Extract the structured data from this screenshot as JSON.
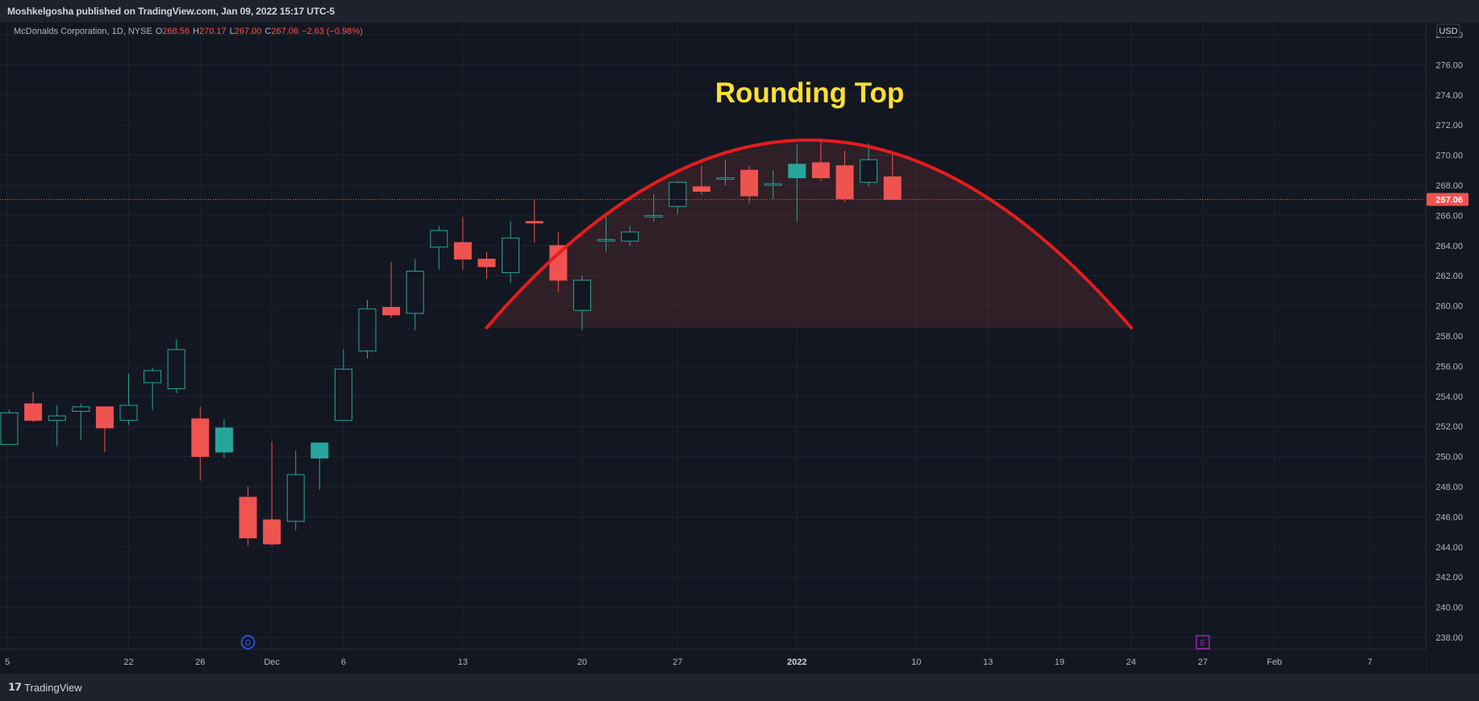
{
  "header": {
    "publisher_line": "Moshkelgosha published on TradingView.com, Jan 09, 2022 15:17 UTC-5"
  },
  "legend": {
    "symbol": "McDonalds Corporation, 1D, NYSE",
    "o_label": "O",
    "o_value": "268.56",
    "h_label": "H",
    "h_value": "270.17",
    "l_label": "L",
    "l_value": "267.00",
    "c_label": "C",
    "c_value": "267.06",
    "change": "−2.63 (−0.98%)"
  },
  "footer": {
    "brand": "TradingView"
  },
  "colors": {
    "background": "#131722",
    "grid": "#1f2330",
    "text": "#b2b5be",
    "up": "#26a69a",
    "down": "#ef5350",
    "arc": "#e51c1c",
    "title": "#ffe033",
    "dividend": "#2962ff",
    "earnings": "#9c27b0"
  },
  "chart_data": {
    "type": "candlestick",
    "title": "Rounding Top",
    "currency": "USD",
    "last_price": "267.06",
    "y_ticks": [
      "238.00",
      "240.00",
      "242.00",
      "244.00",
      "246.00",
      "248.00",
      "250.00",
      "252.00",
      "254.00",
      "256.00",
      "258.00",
      "260.00",
      "262.00",
      "264.00",
      "266.00",
      "268.00",
      "270.00",
      "272.00",
      "274.00",
      "276.00",
      "278.00"
    ],
    "ylim": [
      237.2,
      278.8
    ],
    "x_ticks": [
      {
        "label": "5",
        "slot": -0.08
      },
      {
        "label": "22",
        "slot": 5
      },
      {
        "label": "26",
        "slot": 8
      },
      {
        "label": "Dec",
        "slot": 11
      },
      {
        "label": "6",
        "slot": 14
      },
      {
        "label": "13",
        "slot": 19
      },
      {
        "label": "20",
        "slot": 24
      },
      {
        "label": "27",
        "slot": 28
      },
      {
        "label": "2022",
        "slot": 33
      },
      {
        "label": "10",
        "slot": 38
      },
      {
        "label": "13",
        "slot": 41
      },
      {
        "label": "19",
        "slot": 44
      },
      {
        "label": "24",
        "slot": 47
      },
      {
        "label": "27",
        "slot": 50
      },
      {
        "label": "Feb",
        "slot": 53
      },
      {
        "label": "7",
        "slot": 57
      }
    ],
    "candles": [
      {
        "o": 250.8,
        "h": 253.1,
        "l": 250.8,
        "c": 252.9
      },
      {
        "o": 253.5,
        "h": 254.3,
        "l": 252.3,
        "c": 252.4
      },
      {
        "o": 252.4,
        "h": 253.4,
        "l": 250.7,
        "c": 252.7
      },
      {
        "o": 253.0,
        "h": 253.5,
        "l": 251.1,
        "c": 253.3
      },
      {
        "o": 253.3,
        "h": 253.3,
        "l": 250.3,
        "c": 251.9
      },
      {
        "o": 252.4,
        "h": 255.5,
        "l": 252.1,
        "c": 253.4
      },
      {
        "o": 254.9,
        "h": 255.9,
        "l": 253.1,
        "c": 255.7
      },
      {
        "o": 254.5,
        "h": 257.8,
        "l": 254.2,
        "c": 257.1
      },
      {
        "o": 252.5,
        "h": 253.3,
        "l": 248.4,
        "c": 250.0
      },
      {
        "o": 250.3,
        "h": 252.5,
        "l": 249.9,
        "c": 251.9
      },
      {
        "o": 247.3,
        "h": 248.0,
        "l": 244.1,
        "c": 244.6
      },
      {
        "o": 245.8,
        "h": 251.0,
        "l": 244.1,
        "c": 244.2
      },
      {
        "o": 245.7,
        "h": 250.4,
        "l": 245.1,
        "c": 248.8
      },
      {
        "o": 249.9,
        "h": 250.8,
        "l": 247.8,
        "c": 250.9
      },
      {
        "o": 252.4,
        "h": 257.1,
        "l": 252.4,
        "c": 255.8
      },
      {
        "o": 257.0,
        "h": 260.4,
        "l": 256.5,
        "c": 259.8
      },
      {
        "o": 259.9,
        "h": 262.9,
        "l": 259.2,
        "c": 259.4
      },
      {
        "o": 259.5,
        "h": 263.1,
        "l": 258.4,
        "c": 262.3
      },
      {
        "o": 263.9,
        "h": 265.3,
        "l": 262.4,
        "c": 265.0
      },
      {
        "o": 264.2,
        "h": 265.9,
        "l": 262.4,
        "c": 263.1
      },
      {
        "o": 263.1,
        "h": 263.6,
        "l": 261.8,
        "c": 262.6
      },
      {
        "o": 262.2,
        "h": 265.6,
        "l": 261.5,
        "c": 264.5
      },
      {
        "o": 265.6,
        "h": 267.0,
        "l": 264.2,
        "c": 265.5
      },
      {
        "o": 264.0,
        "h": 264.9,
        "l": 260.9,
        "c": 261.7
      },
      {
        "o": 259.7,
        "h": 262.0,
        "l": 258.4,
        "c": 261.7
      },
      {
        "o": 264.3,
        "h": 266.2,
        "l": 263.6,
        "c": 264.4
      },
      {
        "o": 264.3,
        "h": 265.3,
        "l": 264.0,
        "c": 264.9
      },
      {
        "o": 265.9,
        "h": 267.4,
        "l": 265.6,
        "c": 266.0
      },
      {
        "o": 266.6,
        "h": 268.3,
        "l": 266.1,
        "c": 268.2
      },
      {
        "o": 267.9,
        "h": 269.3,
        "l": 267.4,
        "c": 267.6
      },
      {
        "o": 268.4,
        "h": 269.7,
        "l": 268.0,
        "c": 268.5
      },
      {
        "o": 269.0,
        "h": 269.3,
        "l": 266.8,
        "c": 267.3
      },
      {
        "o": 268.0,
        "h": 269.0,
        "l": 267.1,
        "c": 268.1
      },
      {
        "o": 268.5,
        "h": 270.7,
        "l": 265.6,
        "c": 269.4
      },
      {
        "o": 269.5,
        "h": 271.1,
        "l": 268.3,
        "c": 268.5
      },
      {
        "o": 269.3,
        "h": 270.3,
        "l": 266.9,
        "c": 267.1
      },
      {
        "o": 268.2,
        "h": 270.8,
        "l": 267.9,
        "c": 269.7
      },
      {
        "o": 268.56,
        "h": 270.17,
        "l": 267.0,
        "c": 267.06
      }
    ],
    "arc": {
      "start_slot": 20,
      "end_slot": 47,
      "base_price": 258.55,
      "peak_price": 271.0
    },
    "events": [
      {
        "type": "dividend",
        "label": "D",
        "slot": 10
      },
      {
        "type": "earnings",
        "label": "E",
        "slot": 50
      }
    ],
    "grid": true
  }
}
